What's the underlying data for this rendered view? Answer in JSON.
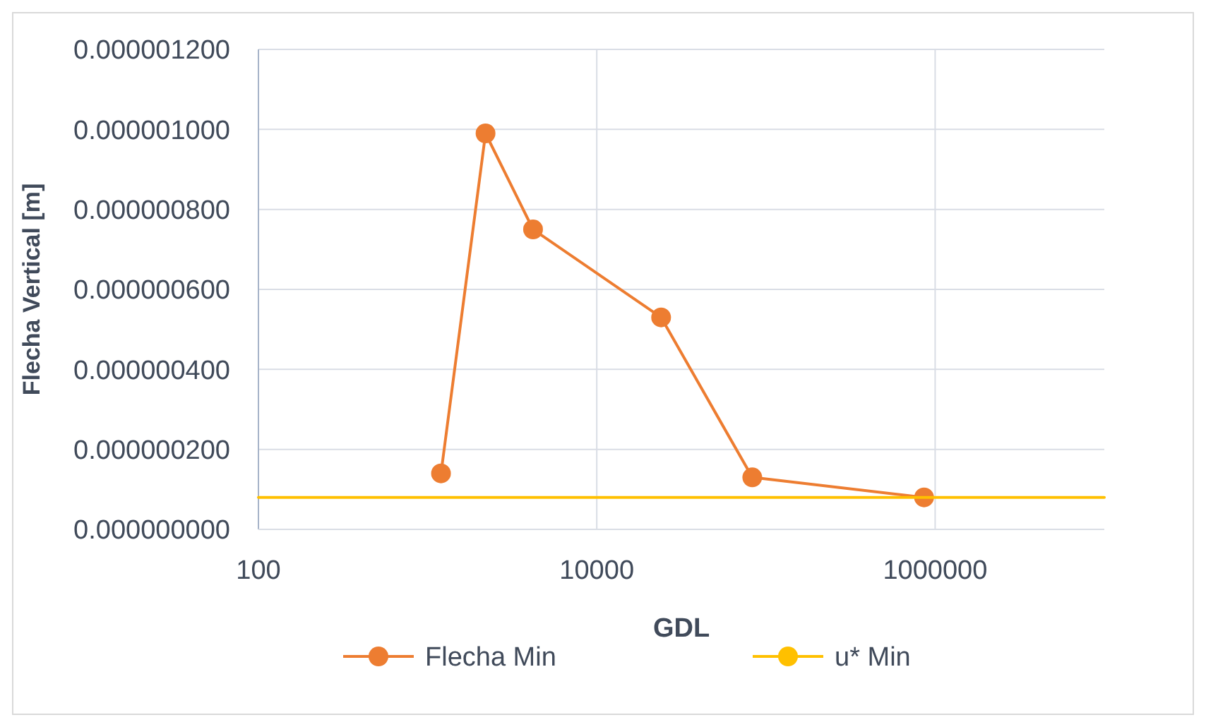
{
  "chart_data": {
    "type": "line",
    "xlabel": "GDL",
    "ylabel": "Flecha Vertical [m]",
    "log": "x",
    "xlim": [
      100,
      10000000
    ],
    "xticks": [
      100,
      10000,
      1000000
    ],
    "ylim": [
      0,
      1.2e-06
    ],
    "yticks": [
      {
        "value": 0,
        "label": "0.000000000"
      },
      {
        "value": 2e-07,
        "label": "0.000000200"
      },
      {
        "value": 4e-07,
        "label": "0.000000400"
      },
      {
        "value": 6e-07,
        "label": "0.000000600"
      },
      {
        "value": 8e-07,
        "label": "0.000000800"
      },
      {
        "value": 1e-06,
        "label": "0.000001000"
      },
      {
        "value": 1.2e-06,
        "label": "0.000001200"
      }
    ],
    "grid": true,
    "legend": "bottom",
    "line_style": "solid",
    "series": [
      {
        "name": "Flecha Min",
        "color": "#ed7d31",
        "marker": "circle",
        "x": [
          1200,
          2200,
          4200,
          24000,
          83000,
          860000
        ],
        "values": [
          1.4e-07,
          9.9e-07,
          7.5e-07,
          5.3e-07,
          1.3e-07,
          8e-08
        ]
      },
      {
        "name": "u* Min",
        "color": "#ffc000",
        "marker": "none",
        "x": [
          100,
          10000000
        ],
        "values": [
          8e-08,
          8e-08
        ]
      }
    ]
  }
}
